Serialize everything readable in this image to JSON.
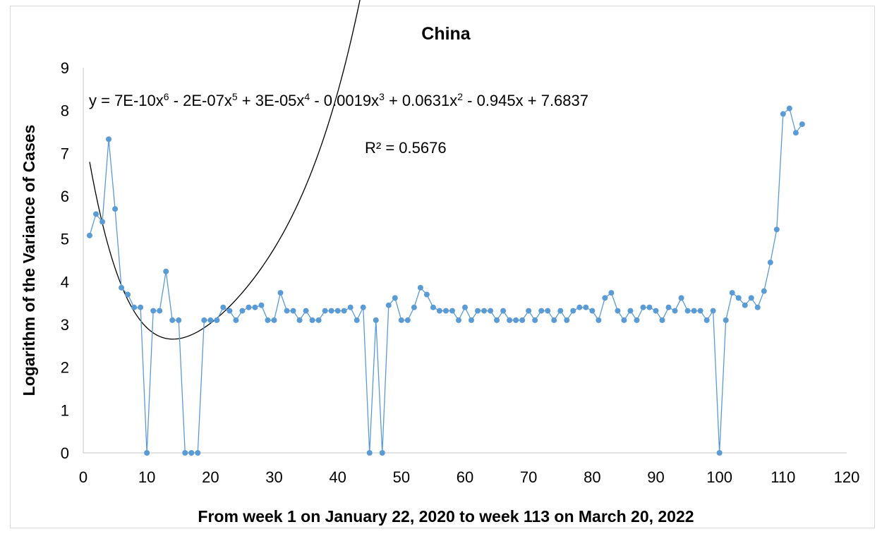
{
  "chart_data": {
    "type": "scatter",
    "title": "China",
    "xlabel": "From week 1 on January  22, 2020 to week 113 on March 20, 2022",
    "ylabel": "Logarithm of the Variance of Cases",
    "xlim": [
      0,
      120
    ],
    "ylim": [
      0,
      9
    ],
    "x_ticks": [
      0,
      10,
      20,
      30,
      40,
      50,
      60,
      70,
      80,
      90,
      100,
      110,
      120
    ],
    "y_ticks": [
      0,
      1,
      2,
      3,
      4,
      5,
      6,
      7,
      8,
      9
    ],
    "grid": false,
    "colors": {
      "series": "#5b9bd5",
      "trendline": "#000000"
    },
    "trendline": {
      "type": "polynomial",
      "order": 6,
      "coefficients_descending": [
        7e-10,
        -2e-07,
        3e-05,
        -0.0019,
        0.0631,
        -0.945,
        7.6837
      ],
      "equation_parts": {
        "p1": "y = 7E-10x",
        "e1": "6",
        "p2": " - 2E-07x",
        "e2": "5",
        "p3": " + 3E-05x",
        "e3": "4",
        "p4": " - 0.0019x",
        "e4": "3",
        "p5": " + 0.0631x",
        "e5": "2",
        "p6": " - 0.945x + 7.6837"
      },
      "r_squared_label": "R² = 0.5676"
    },
    "series": [
      {
        "x": [
          1,
          2,
          3,
          4,
          5,
          6,
          7,
          8,
          9,
          10,
          11,
          12,
          13,
          14,
          15,
          16,
          17,
          18,
          19,
          20,
          21,
          22,
          23,
          24,
          25,
          26,
          27,
          28,
          29,
          30,
          31,
          32,
          33,
          34,
          35,
          36,
          37,
          38,
          39,
          40,
          41,
          42,
          43,
          44,
          45,
          46,
          47,
          48,
          49,
          50,
          51,
          52,
          53,
          54,
          55,
          56,
          57,
          58,
          59,
          60,
          61,
          62,
          63,
          64,
          65,
          66,
          67,
          68,
          69,
          70,
          71,
          72,
          73,
          74,
          75,
          76,
          77,
          78,
          79,
          80,
          81,
          82,
          83,
          84,
          85,
          86,
          87,
          88,
          89,
          90,
          91,
          92,
          93,
          94,
          95,
          96,
          97,
          98,
          99,
          100,
          101,
          102,
          103,
          104,
          105,
          106,
          107,
          108,
          109,
          110,
          111,
          112,
          113
        ],
        "y": [
          5.08,
          5.58,
          5.4,
          7.33,
          5.7,
          3.86,
          3.7,
          3.4,
          3.4,
          0,
          3.32,
          3.32,
          4.24,
          3.1,
          3.1,
          0,
          0,
          0,
          3.1,
          3.1,
          3.1,
          3.4,
          3.32,
          3.1,
          3.32,
          3.4,
          3.4,
          3.45,
          3.1,
          3.1,
          3.74,
          3.32,
          3.32,
          3.1,
          3.32,
          3.1,
          3.1,
          3.32,
          3.32,
          3.32,
          3.32,
          3.4,
          3.1,
          3.4,
          0,
          3.1,
          0,
          3.45,
          3.62,
          3.1,
          3.1,
          3.4,
          3.86,
          3.7,
          3.4,
          3.32,
          3.32,
          3.32,
          3.1,
          3.4,
          3.1,
          3.32,
          3.32,
          3.32,
          3.1,
          3.32,
          3.1,
          3.1,
          3.1,
          3.32,
          3.1,
          3.32,
          3.32,
          3.1,
          3.32,
          3.1,
          3.32,
          3.4,
          3.4,
          3.32,
          3.1,
          3.62,
          3.74,
          3.32,
          3.1,
          3.32,
          3.1,
          3.4,
          3.4,
          3.32,
          3.1,
          3.4,
          3.32,
          3.62,
          3.32,
          3.32,
          3.32,
          3.1,
          3.32,
          0,
          3.1,
          3.74,
          3.62,
          3.45,
          3.62,
          3.4,
          3.78,
          4.45,
          5.22,
          7.92,
          8.05,
          7.48,
          7.68
        ]
      }
    ]
  }
}
